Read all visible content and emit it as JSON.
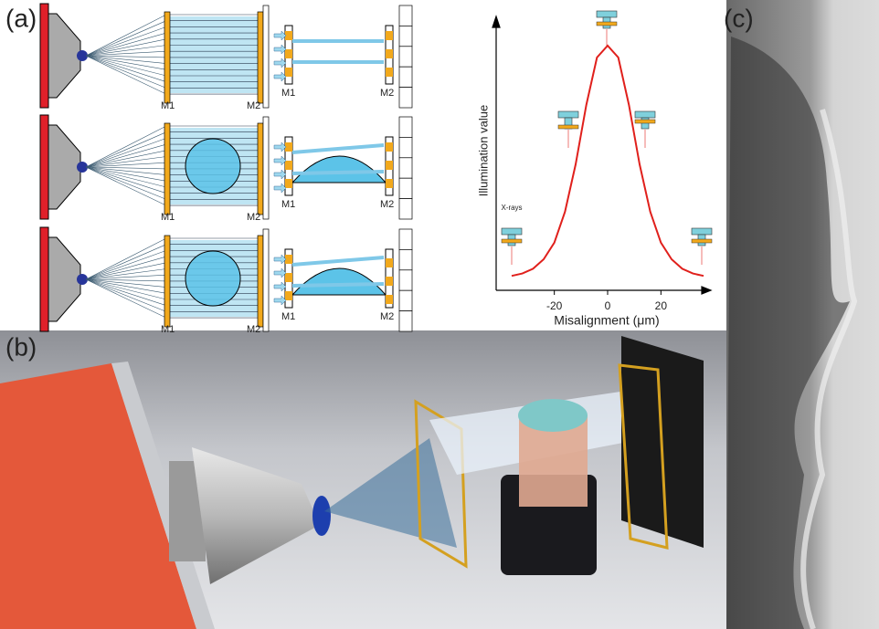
{
  "panels": {
    "a": "(a)",
    "b": "(b)",
    "c": "(c)"
  },
  "schematic": {
    "rows": [
      {
        "m1": "M1",
        "m2": "M2",
        "zoom_m1": "M1",
        "zoom_m2": "M2"
      },
      {
        "m1": "M1",
        "m2": "M2",
        "zoom_m1": "M1",
        "zoom_m2": "M2"
      },
      {
        "m1": "M1",
        "m2": "M2",
        "zoom_m1": "M1",
        "zoom_m2": "M2"
      }
    ]
  },
  "chart_data": {
    "type": "line",
    "x_label": "Misalignment (μm)",
    "y_label": "Illumination value",
    "annotation": "X-rays",
    "x": [
      -36,
      -32,
      -28,
      -24,
      -20,
      -16,
      -12,
      -8,
      -4,
      0,
      4,
      8,
      12,
      16,
      20,
      24,
      28,
      32,
      36
    ],
    "series": [
      {
        "color": "#e0201c",
        "values": [
          0.03,
          0.04,
          0.06,
          0.1,
          0.17,
          0.3,
          0.5,
          0.75,
          0.95,
          1,
          0.95,
          0.75,
          0.5,
          0.3,
          0.17,
          0.1,
          0.06,
          0.04,
          0.03
        ]
      }
    ],
    "xlim": [
      -36,
      36
    ],
    "xticks": [
      -20,
      0,
      20
    ],
    "ylim": [
      0,
      1
    ]
  }
}
